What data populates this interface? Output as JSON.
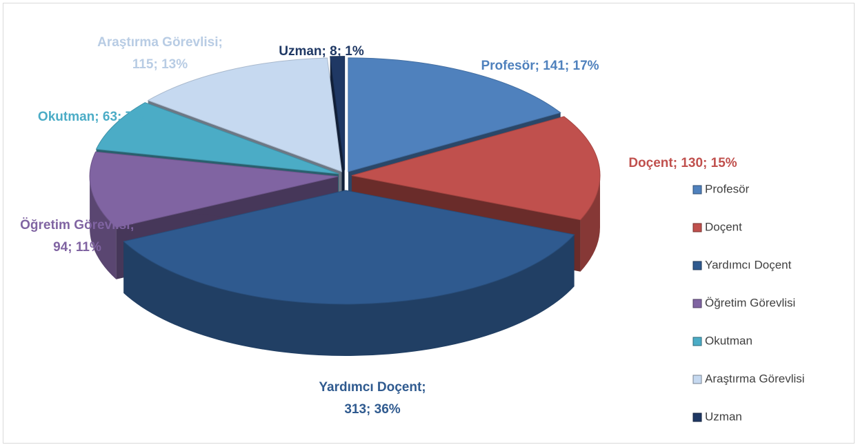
{
  "chart_data": {
    "type": "pie3d",
    "categories": [
      "Profesör",
      "Doçent",
      "Yardımcı Doçent",
      "Öğretim Görevlisi",
      "Okutman",
      "Araştırma Görevlisi",
      "Uzman"
    ],
    "values": [
      141,
      130,
      313,
      94,
      63,
      115,
      8
    ],
    "value_labels": [
      [
        "Profesör; 141; 17%"
      ],
      [
        "Doçent; 130; 15%"
      ],
      [
        "Yardımcı Doçent;",
        "313; 36%"
      ],
      [
        "Öğretim Görevlisi;",
        "94; 11%"
      ],
      [
        "Okutman; 63; 7%"
      ],
      [
        "Araştırma Görevlisi;",
        "115; 13%"
      ],
      [
        "Uzman; 8; 1%"
      ]
    ],
    "colors": [
      "#4f81bd",
      "#c0504d",
      "#2f5a8f",
      "#8064a2",
      "#4bacc6",
      "#c6d9f0",
      "#1f3864"
    ],
    "legend": "right"
  }
}
